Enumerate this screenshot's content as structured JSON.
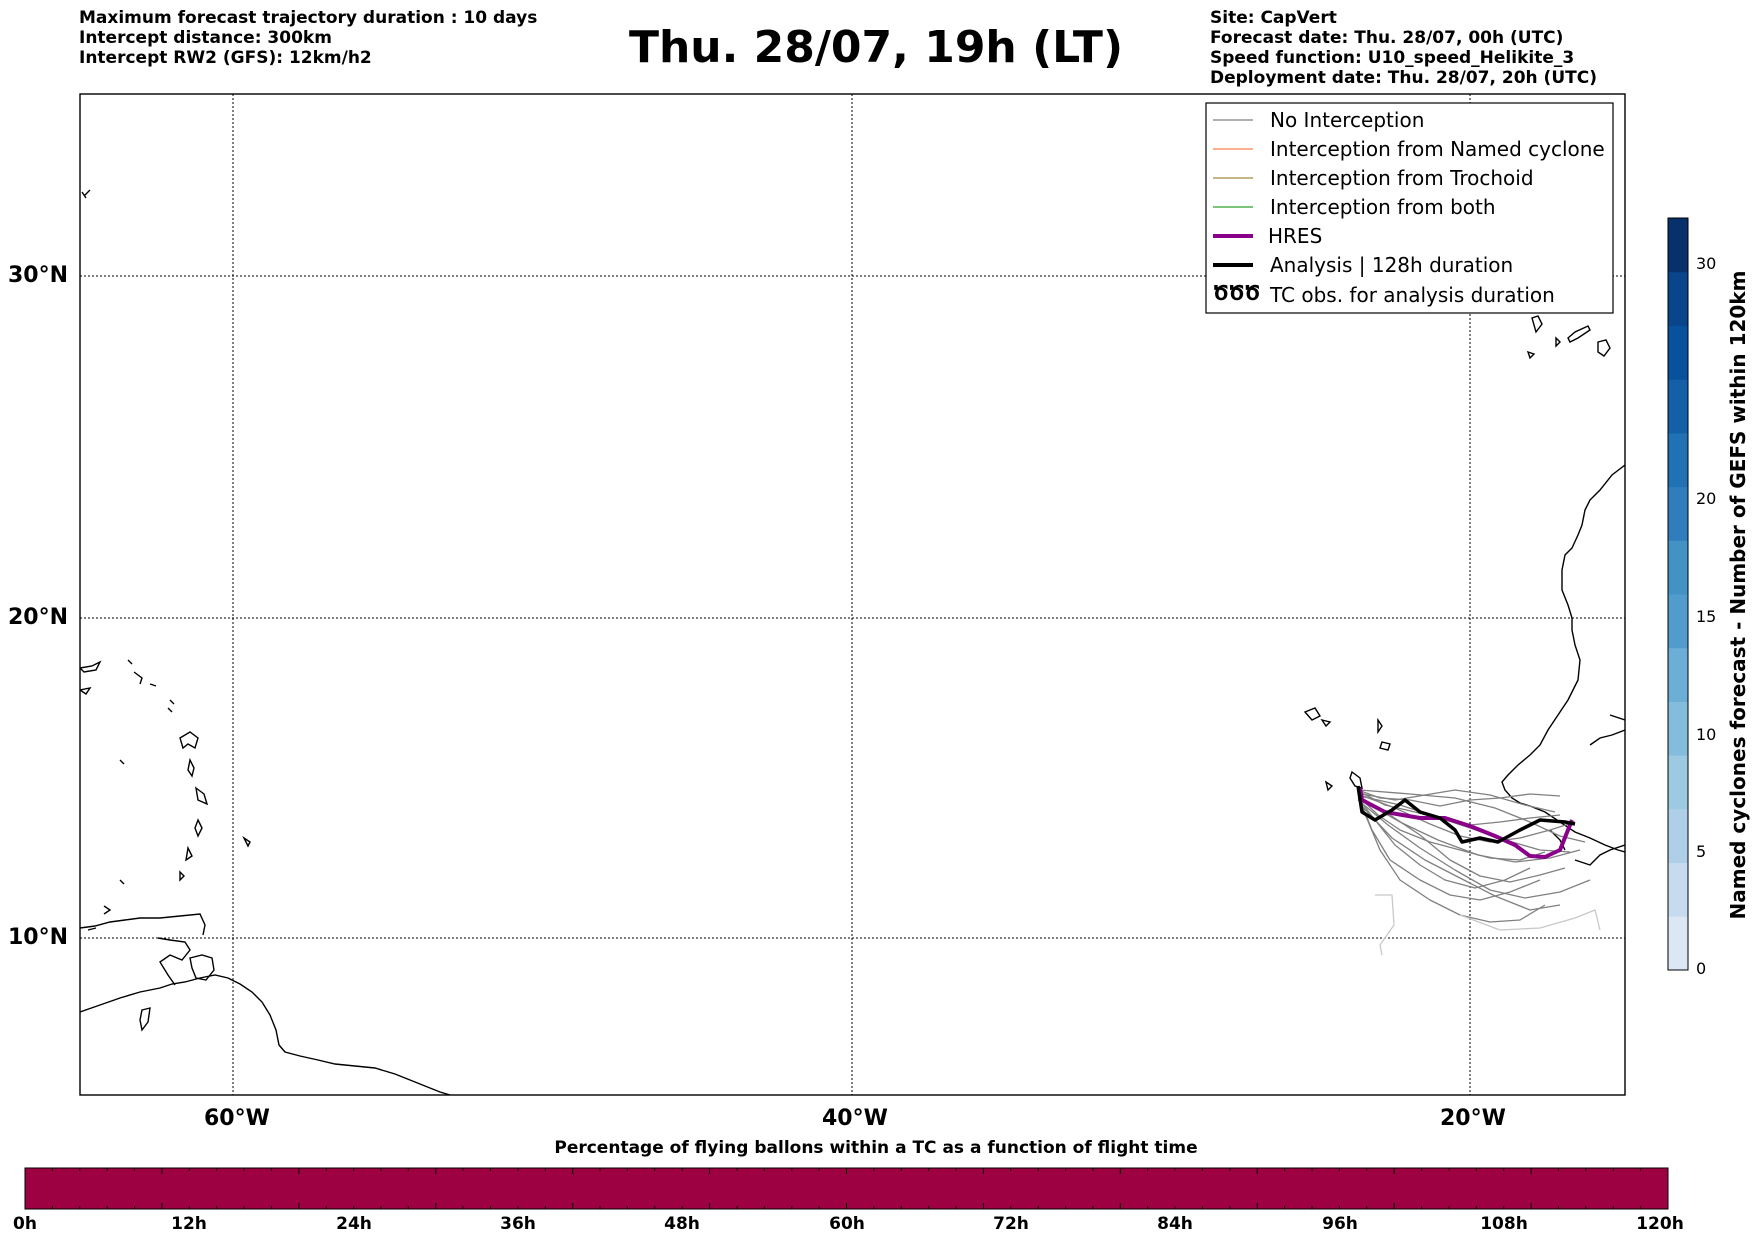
{
  "header_left": [
    "Maximum forecast trajectory duration : 10 days",
    "Intercept distance: 300km",
    "Intercept RW2 (GFS):  12km/h2"
  ],
  "title": "Thu. 28/07, 19h (LT)",
  "header_right": [
    "Site: CapVert",
    "Forecast date: Thu. 28/07, 00h (UTC)",
    "Speed function: U10_speed_Helikite_3",
    "Deployment date: Thu. 28/07, 20h (UTC)"
  ],
  "map": {
    "lon_ticks": [
      "60°W",
      "40°W",
      "20°W"
    ],
    "lat_ticks": [
      "30°N",
      "20°N",
      "10°N"
    ],
    "extent": {
      "lon_min": -65,
      "lon_max": -15,
      "lat_min": 5.4,
      "lat_max": 34.7
    }
  },
  "legend": [
    {
      "label": "No Interception",
      "color": "#808080",
      "style": "thin"
    },
    {
      "label": "Interception from Named cyclone",
      "color": "#ff7f50",
      "style": "thin"
    },
    {
      "label": "Interception from Trochoid",
      "color": "#a08c3c",
      "style": "thin"
    },
    {
      "label": "Interception from both",
      "color": "#2ca02c",
      "style": "thin"
    },
    {
      "label": "HRES",
      "color": "#8b008b",
      "style": "thick"
    },
    {
      "label": "Analysis | 128h duration",
      "color": "#000000",
      "style": "thick"
    },
    {
      "label": "TC obs. for analysis duration",
      "color": "#000000",
      "style": "symbol",
      "symbol": "ԾԾԾ"
    }
  ],
  "colorbar_right": {
    "label": "Named cyclones forecast - Number of GEFS within 120km",
    "ticks": [
      "0",
      "5",
      "10",
      "15",
      "20",
      "30"
    ],
    "range": [
      0,
      32
    ],
    "colors": [
      "#dbe7f5",
      "#c6dbef",
      "#afcfe8",
      "#9ecae1",
      "#84bcdb",
      "#6baed6",
      "#519ccc",
      "#4292c6",
      "#2f7ebb",
      "#2171b5",
      "#1460a8",
      "#08519c",
      "#08458a",
      "#08306b"
    ]
  },
  "colorbar_bottom": {
    "label": "Percentage of flying ballons within a TC as a function of flight time",
    "ticks": [
      "0h",
      "12h",
      "24h",
      "36h",
      "48h",
      "60h",
      "72h",
      "84h",
      "96h",
      "108h",
      "120h"
    ],
    "fill_color": "#9e0142",
    "value_percent": 0
  }
}
